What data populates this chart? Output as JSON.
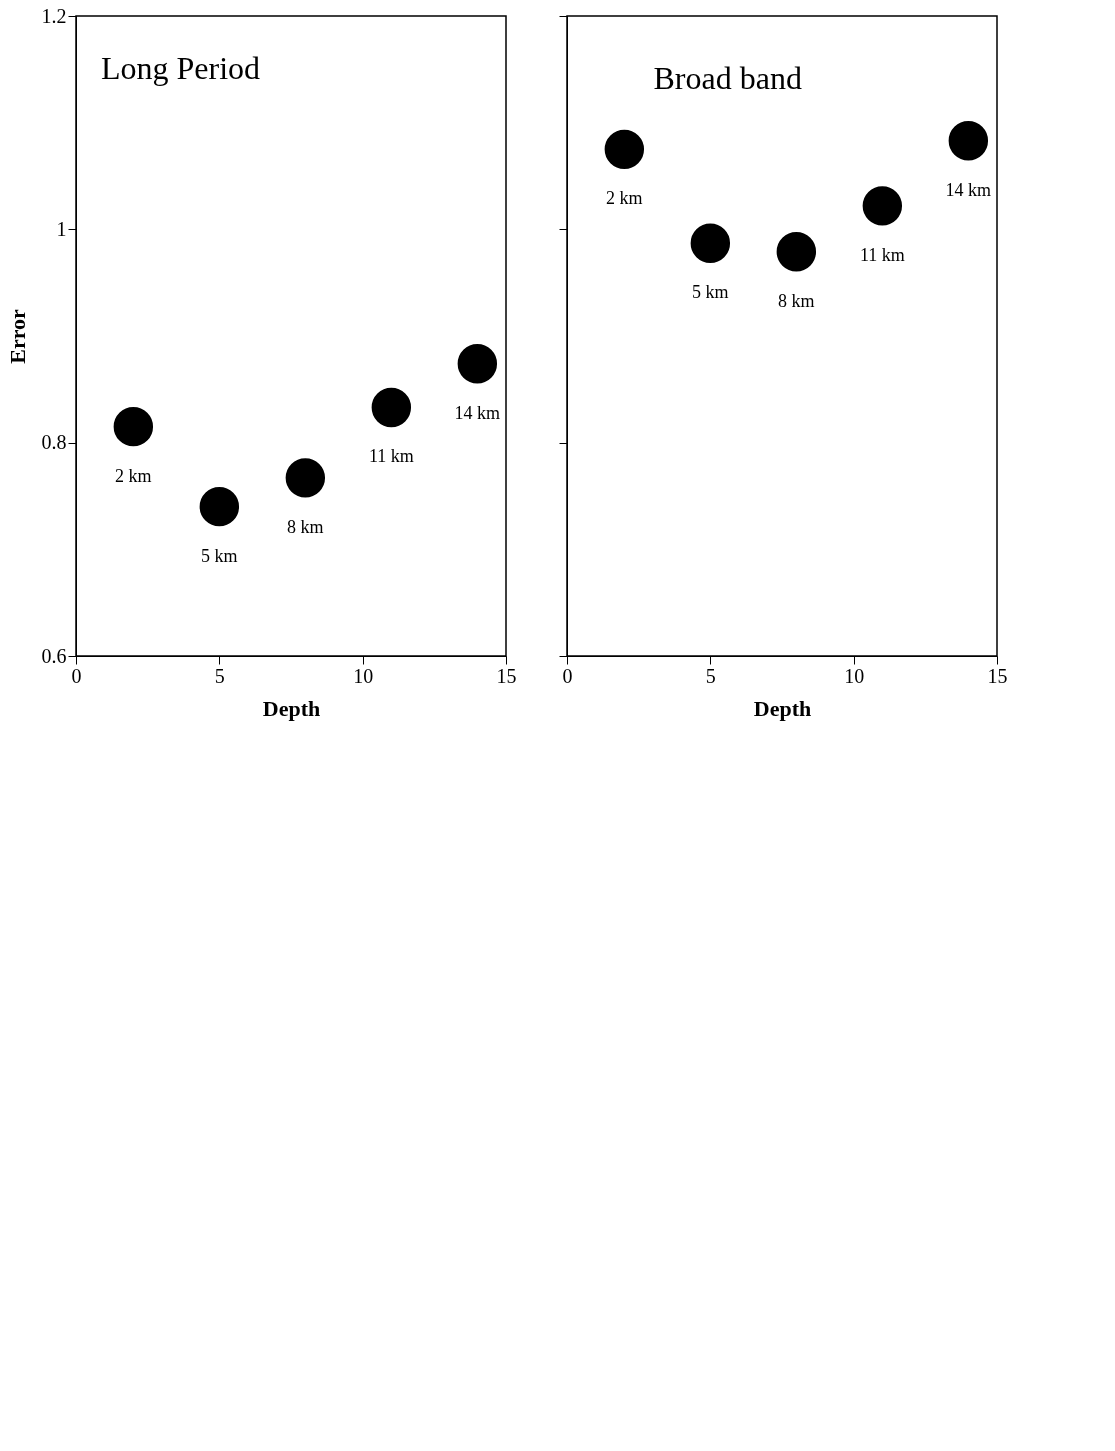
{
  "chart_data": [
    {
      "type": "scatter",
      "title": "Long Period",
      "xlabel": "Depth",
      "ylabel": "Error",
      "x": [
        2,
        5,
        8,
        11,
        14
      ],
      "series": [
        {
          "color": "#000000",
          "values": [
            0.815,
            0.74,
            0.767,
            0.833,
            0.874
          ]
        }
      ],
      "xlim": [
        0,
        15
      ],
      "ylim": [
        0.6,
        1.2
      ],
      "xticks": [
        0,
        5,
        10,
        15
      ],
      "yticks": [
        0.6,
        0.8,
        1,
        1.2
      ],
      "marker": "circle",
      "grid": false,
      "annotations": [
        {
          "text": "2 km",
          "x": 2,
          "y": 0.815
        },
        {
          "text": "5 km",
          "x": 5,
          "y": 0.74
        },
        {
          "text": "8 km",
          "x": 8,
          "y": 0.767
        },
        {
          "text": "11 km",
          "x": 11,
          "y": 0.833
        },
        {
          "text": "14 km",
          "x": 14,
          "y": 0.874
        }
      ]
    },
    {
      "type": "scatter",
      "title": "Broad band",
      "xlabel": "Depth",
      "x": [
        2,
        5,
        8,
        11,
        14
      ],
      "series": [
        {
          "color": "#000000",
          "values": [
            1.075,
            0.987,
            0.979,
            1.022,
            1.083
          ]
        }
      ],
      "xlim": [
        0,
        15
      ],
      "ylim": [
        0.6,
        1.2
      ],
      "xticks": [
        0,
        5,
        10,
        15
      ],
      "yticks": [
        0.6,
        0.8,
        1,
        1.2
      ],
      "tick_labels": "x",
      "marker": "circle",
      "grid": false,
      "annotations": [
        {
          "text": "2 km",
          "x": 2,
          "y": 1.075
        },
        {
          "text": "5 km",
          "x": 5,
          "y": 0.987
        },
        {
          "text": "8 km",
          "x": 8,
          "y": 0.979
        },
        {
          "text": "11 km",
          "x": 11,
          "y": 1.022
        },
        {
          "text": "14 km",
          "x": 14,
          "y": 1.083
        }
      ]
    }
  ]
}
